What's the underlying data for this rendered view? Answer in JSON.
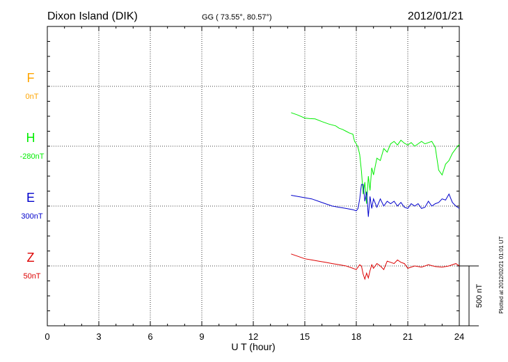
{
  "header": {
    "station": "Dixon Island (DIK)",
    "coords": "GG ( 73.55°,  80.57°)",
    "date": "2012/01/21"
  },
  "footer": {
    "plotted": "Plotted at 2012/02/21 01:01 UT"
  },
  "colors": {
    "F": "#ffa500",
    "H": "#00ee00",
    "E": "#0000cc",
    "Z": "#dd0000",
    "axis": "#000000"
  },
  "chart_data": {
    "type": "line",
    "xlabel": "U T (hour)",
    "xlim": [
      0,
      24
    ],
    "xticks": [
      "0",
      "3",
      "6",
      "9",
      "12",
      "15",
      "18",
      "21",
      "24"
    ],
    "scale_label": "500 nT",
    "scale_nT": 500,
    "channels": [
      {
        "name": "F",
        "offset": "0nT",
        "baseline_level": 3
      },
      {
        "name": "H",
        "offset": "-280nT",
        "baseline_level": 2
      },
      {
        "name": "E",
        "offset": "300nT",
        "baseline_level": 1
      },
      {
        "name": "Z",
        "offset": "50nT",
        "baseline_level": 0
      }
    ],
    "series": [
      {
        "name": "H",
        "x": [
          14.2,
          14.6,
          15.0,
          15.3,
          15.6,
          16.0,
          16.4,
          16.8,
          17.0,
          17.2,
          17.4,
          17.6,
          17.8,
          17.9,
          18.0,
          18.1,
          18.2,
          18.3,
          18.4,
          18.5,
          18.6,
          18.7,
          18.8,
          18.9,
          19.0,
          19.2,
          19.4,
          19.6,
          19.8,
          20.0,
          20.2,
          20.4,
          20.6,
          20.8,
          21.0,
          21.2,
          21.4,
          21.6,
          21.8,
          22.0,
          22.2,
          22.4,
          22.6,
          22.8,
          23.0,
          23.2,
          23.4,
          23.6,
          23.8,
          24.0
        ],
        "y": [
          280,
          260,
          235,
          230,
          228,
          205,
          185,
          170,
          150,
          140,
          125,
          110,
          100,
          40,
          20,
          -10,
          -70,
          -210,
          -400,
          -300,
          -480,
          -250,
          -370,
          -180,
          -240,
          -100,
          -120,
          -20,
          -50,
          20,
          40,
          10,
          50,
          25,
          10,
          30,
          0,
          20,
          40,
          20,
          30,
          40,
          -10,
          -200,
          -240,
          -150,
          -120,
          -60,
          -20,
          15
        ]
      },
      {
        "name": "E",
        "x": [
          14.2,
          14.6,
          15.0,
          15.4,
          15.8,
          16.2,
          16.6,
          17.0,
          17.4,
          17.8,
          18.0,
          18.1,
          18.2,
          18.3,
          18.4,
          18.5,
          18.6,
          18.7,
          18.8,
          18.9,
          19.0,
          19.2,
          19.4,
          19.6,
          19.8,
          20.0,
          20.2,
          20.4,
          20.6,
          20.8,
          21.0,
          21.2,
          21.4,
          21.6,
          21.8,
          22.0,
          22.2,
          22.4,
          22.6,
          22.8,
          23.0,
          23.2,
          23.4,
          23.6,
          23.8,
          24.0
        ],
        "y": [
          90,
          80,
          70,
          60,
          40,
          20,
          0,
          -10,
          -20,
          -30,
          -40,
          -20,
          60,
          180,
          180,
          40,
          120,
          -90,
          80,
          -20,
          60,
          -10,
          60,
          0,
          40,
          20,
          40,
          0,
          30,
          -10,
          -20,
          20,
          0,
          20,
          -20,
          -10,
          40,
          0,
          20,
          30,
          60,
          50,
          100,
          30,
          0,
          -20
        ]
      },
      {
        "name": "Z",
        "x": [
          14.2,
          14.6,
          15.0,
          15.4,
          15.8,
          16.2,
          16.6,
          17.0,
          17.4,
          17.6,
          17.8,
          18.0,
          18.2,
          18.3,
          18.4,
          18.5,
          18.6,
          18.7,
          18.8,
          18.9,
          19.0,
          19.2,
          19.4,
          19.6,
          19.8,
          20.0,
          20.2,
          20.4,
          20.6,
          20.8,
          21.0,
          21.4,
          21.8,
          22.2,
          22.6,
          23.0,
          23.4,
          23.8,
          24.0
        ],
        "y": [
          100,
          80,
          60,
          50,
          40,
          30,
          20,
          10,
          0,
          -10,
          -20,
          -30,
          10,
          0,
          -70,
          -110,
          -60,
          -100,
          -40,
          10,
          -20,
          20,
          0,
          -30,
          40,
          30,
          20,
          50,
          30,
          20,
          -20,
          0,
          -10,
          10,
          -5,
          -10,
          0,
          20,
          0
        ]
      }
    ]
  }
}
